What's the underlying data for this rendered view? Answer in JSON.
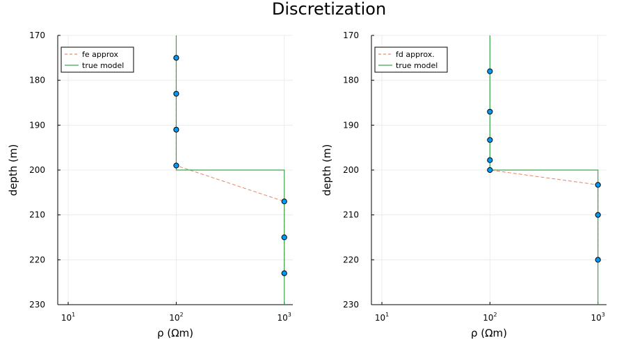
{
  "figure": {
    "title": "Discretization"
  },
  "colors": {
    "approx": "#e26f46",
    "true": "#3da44d",
    "marker": "#009af9",
    "marker_edge": "#000000",
    "grid": "#e8e8e8",
    "axis": "#000000"
  },
  "chart_data": [
    {
      "type": "line",
      "title": "",
      "xlabel": "ρ (Ωm)",
      "ylabel": "depth (m)",
      "x_scale": "log10",
      "xlim": [
        8,
        1200
      ],
      "ylim": [
        230,
        170
      ],
      "y_inverted": true,
      "grid": true,
      "legend_position": "top-left",
      "x_ticks": [
        {
          "base": "10",
          "exp": "1",
          "value": 10
        },
        {
          "base": "10",
          "exp": "2",
          "value": 100
        },
        {
          "base": "10",
          "exp": "3",
          "value": 1000
        }
      ],
      "y_ticks": [
        170,
        180,
        190,
        200,
        210,
        220,
        230
      ],
      "series": [
        {
          "name": "fe approx",
          "style": "dashed",
          "markers": true,
          "points": [
            [
              100,
              175
            ],
            [
              100,
              183
            ],
            [
              100,
              191
            ],
            [
              100,
              199
            ],
            [
              1000,
              207
            ],
            [
              1000,
              215
            ],
            [
              1000,
              223
            ]
          ]
        },
        {
          "name": "true model",
          "style": "solid",
          "markers": false,
          "points": [
            [
              100,
              170
            ],
            [
              100,
              200
            ],
            [
              1000,
              200
            ],
            [
              1000,
              230
            ]
          ]
        }
      ]
    },
    {
      "type": "line",
      "title": "",
      "xlabel": "ρ (Ωm)",
      "ylabel": "depth (m)",
      "x_scale": "log10",
      "xlim": [
        8,
        1200
      ],
      "ylim": [
        230,
        170
      ],
      "y_inverted": true,
      "grid": true,
      "legend_position": "top-left",
      "x_ticks": [
        {
          "base": "10",
          "exp": "1",
          "value": 10
        },
        {
          "base": "10",
          "exp": "2",
          "value": 100
        },
        {
          "base": "10",
          "exp": "3",
          "value": 1000
        }
      ],
      "y_ticks": [
        170,
        180,
        190,
        200,
        210,
        220,
        230
      ],
      "series": [
        {
          "name": "fd approx.",
          "style": "dashed",
          "markers": true,
          "points": [
            [
              100,
              178
            ],
            [
              100,
              187
            ],
            [
              100,
              193.3
            ],
            [
              100,
              197.8
            ],
            [
              100,
              200
            ],
            [
              1000,
              203.3
            ],
            [
              1000,
              210
            ],
            [
              1000,
              220
            ]
          ]
        },
        {
          "name": "true model",
          "style": "solid",
          "markers": false,
          "points": [
            [
              100,
              170
            ],
            [
              100,
              200
            ],
            [
              1000,
              200
            ],
            [
              1000,
              230
            ]
          ]
        }
      ]
    }
  ]
}
